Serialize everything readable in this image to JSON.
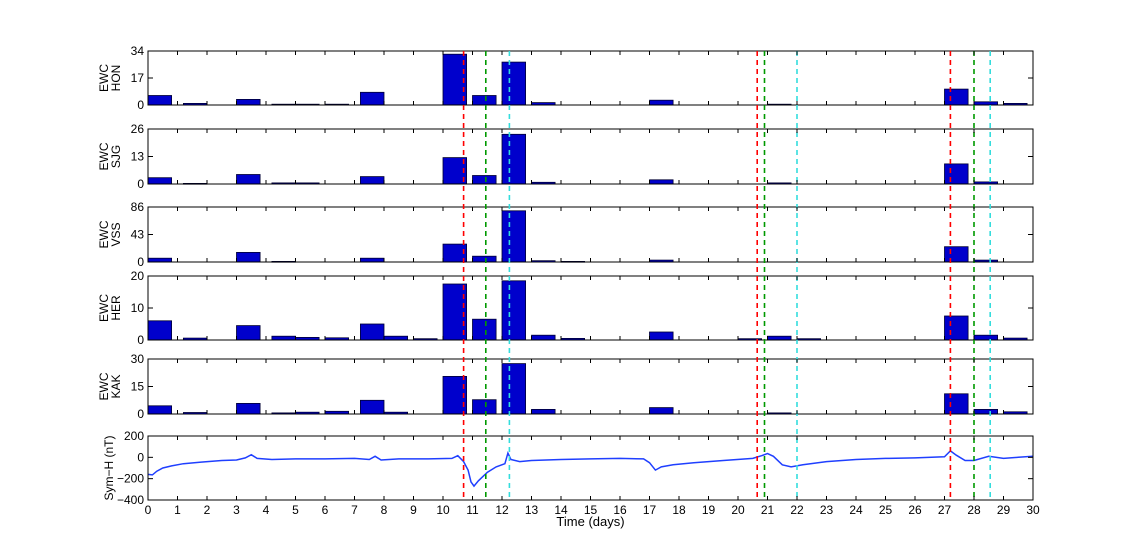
{
  "chart_data": [
    {
      "type": "bar",
      "ylabel": [
        "EWC",
        "HON"
      ],
      "yticks": [
        "0",
        "17",
        "34"
      ],
      "ylim": [
        0,
        34
      ],
      "bin_width_days": 0.8,
      "bars": [
        {
          "x": 0.4,
          "value": 6
        },
        {
          "x": 1.6,
          "value": 1
        },
        {
          "x": 3.4,
          "value": 3.5
        },
        {
          "x": 4.6,
          "value": 0.5
        },
        {
          "x": 5.4,
          "value": 0.5
        },
        {
          "x": 6.4,
          "value": 0.5
        },
        {
          "x": 7.6,
          "value": 8
        },
        {
          "x": 10.4,
          "value": 32
        },
        {
          "x": 11.4,
          "value": 6
        },
        {
          "x": 12.4,
          "value": 27
        },
        {
          "x": 13.4,
          "value": 1.5
        },
        {
          "x": 17.4,
          "value": 3
        },
        {
          "x": 21.4,
          "value": 0.5
        },
        {
          "x": 27.4,
          "value": 10
        },
        {
          "x": 28.4,
          "value": 2
        },
        {
          "x": 29.4,
          "value": 1
        }
      ]
    },
    {
      "type": "bar",
      "ylabel": [
        "EWC",
        "SJG"
      ],
      "yticks": [
        "0",
        "13",
        "26"
      ],
      "ylim": [
        0,
        26
      ],
      "bin_width_days": 0.8,
      "bars": [
        {
          "x": 0.4,
          "value": 3
        },
        {
          "x": 1.6,
          "value": 0.3
        },
        {
          "x": 3.4,
          "value": 4.5
        },
        {
          "x": 4.6,
          "value": 0.5
        },
        {
          "x": 5.4,
          "value": 0.5
        },
        {
          "x": 7.6,
          "value": 3.5
        },
        {
          "x": 10.4,
          "value": 12.5
        },
        {
          "x": 11.4,
          "value": 4
        },
        {
          "x": 12.4,
          "value": 23.5
        },
        {
          "x": 13.4,
          "value": 0.8
        },
        {
          "x": 17.4,
          "value": 2
        },
        {
          "x": 21.4,
          "value": 0.5
        },
        {
          "x": 27.4,
          "value": 9.5
        },
        {
          "x": 28.4,
          "value": 1
        }
      ]
    },
    {
      "type": "bar",
      "ylabel": [
        "EWC",
        "VSS"
      ],
      "yticks": [
        "0",
        "43",
        "86"
      ],
      "ylim": [
        0,
        86
      ],
      "bin_width_days": 0.8,
      "bars": [
        {
          "x": 0.4,
          "value": 6
        },
        {
          "x": 3.4,
          "value": 15
        },
        {
          "x": 4.6,
          "value": 1
        },
        {
          "x": 7.6,
          "value": 6
        },
        {
          "x": 10.4,
          "value": 28
        },
        {
          "x": 11.4,
          "value": 9
        },
        {
          "x": 12.4,
          "value": 80
        },
        {
          "x": 13.4,
          "value": 2
        },
        {
          "x": 14.4,
          "value": 1
        },
        {
          "x": 17.4,
          "value": 3
        },
        {
          "x": 27.4,
          "value": 24
        },
        {
          "x": 28.4,
          "value": 3
        }
      ]
    },
    {
      "type": "bar",
      "ylabel": [
        "EWC",
        "HER"
      ],
      "yticks": [
        "0",
        "10",
        "20"
      ],
      "ylim": [
        0,
        20
      ],
      "bin_width_days": 0.8,
      "bars": [
        {
          "x": 0.4,
          "value": 6
        },
        {
          "x": 1.6,
          "value": 0.6
        },
        {
          "x": 3.4,
          "value": 4.5
        },
        {
          "x": 4.6,
          "value": 1.2
        },
        {
          "x": 5.4,
          "value": 0.8
        },
        {
          "x": 6.4,
          "value": 0.7
        },
        {
          "x": 7.6,
          "value": 5
        },
        {
          "x": 8.4,
          "value": 1.2
        },
        {
          "x": 9.4,
          "value": 0.4
        },
        {
          "x": 10.4,
          "value": 17.5
        },
        {
          "x": 11.4,
          "value": 6.5
        },
        {
          "x": 12.4,
          "value": 18.5
        },
        {
          "x": 13.4,
          "value": 1.5
        },
        {
          "x": 14.4,
          "value": 0.5
        },
        {
          "x": 17.4,
          "value": 2.5
        },
        {
          "x": 20.4,
          "value": 0.4
        },
        {
          "x": 21.4,
          "value": 1.2
        },
        {
          "x": 22.4,
          "value": 0.4
        },
        {
          "x": 27.4,
          "value": 7.5
        },
        {
          "x": 28.4,
          "value": 1.5
        },
        {
          "x": 29.4,
          "value": 0.6
        }
      ]
    },
    {
      "type": "bar",
      "ylabel": [
        "EWC",
        "KAK"
      ],
      "yticks": [
        "0",
        "15",
        "30"
      ],
      "ylim": [
        0,
        30
      ],
      "bin_width_days": 0.8,
      "bars": [
        {
          "x": 0.4,
          "value": 4.5
        },
        {
          "x": 1.6,
          "value": 0.8
        },
        {
          "x": 3.4,
          "value": 5.8
        },
        {
          "x": 4.6,
          "value": 0.6
        },
        {
          "x": 5.4,
          "value": 1
        },
        {
          "x": 6.4,
          "value": 1.5
        },
        {
          "x": 7.6,
          "value": 7.5
        },
        {
          "x": 8.4,
          "value": 1
        },
        {
          "x": 10.4,
          "value": 20.5
        },
        {
          "x": 11.4,
          "value": 7.8
        },
        {
          "x": 12.4,
          "value": 27.5
        },
        {
          "x": 13.4,
          "value": 2.5
        },
        {
          "x": 17.4,
          "value": 3.5
        },
        {
          "x": 21.4,
          "value": 0.6
        },
        {
          "x": 27.4,
          "value": 11
        },
        {
          "x": 28.4,
          "value": 2.5
        },
        {
          "x": 29.4,
          "value": 1.2
        }
      ]
    },
    {
      "type": "line",
      "ylabel": [
        "Sym−H (nT)"
      ],
      "yticks": [
        "−400",
        "−200",
        "0",
        "200"
      ],
      "ylim": [
        -400,
        200
      ],
      "xlabel": "Time (days)",
      "xticks": [
        "0",
        "1",
        "2",
        "3",
        "4",
        "5",
        "6",
        "7",
        "8",
        "9",
        "10",
        "11",
        "12",
        "13",
        "14",
        "15",
        "16",
        "17",
        "18",
        "19",
        "20",
        "21",
        "22",
        "23",
        "24",
        "25",
        "26",
        "27",
        "28",
        "29",
        "30"
      ],
      "xlim": [
        0,
        30
      ],
      "series": [
        {
          "color": "#1f3fff",
          "points": [
            [
              0,
              -160
            ],
            [
              0.15,
              -165
            ],
            [
              0.3,
              -130
            ],
            [
              0.5,
              -100
            ],
            [
              0.8,
              -80
            ],
            [
              1.2,
              -60
            ],
            [
              1.8,
              -45
            ],
            [
              2.5,
              -30
            ],
            [
              3.0,
              -25
            ],
            [
              3.3,
              -5
            ],
            [
              3.5,
              25
            ],
            [
              3.7,
              -10
            ],
            [
              4.2,
              -20
            ],
            [
              5.0,
              -15
            ],
            [
              6.0,
              -15
            ],
            [
              7.0,
              -10
            ],
            [
              7.5,
              -20
            ],
            [
              7.7,
              10
            ],
            [
              7.9,
              -25
            ],
            [
              8.5,
              -15
            ],
            [
              9.5,
              -15
            ],
            [
              10.3,
              -10
            ],
            [
              10.5,
              15
            ],
            [
              10.7,
              -40
            ],
            [
              10.85,
              -120
            ],
            [
              10.95,
              -230
            ],
            [
              11.05,
              -270
            ],
            [
              11.2,
              -220
            ],
            [
              11.5,
              -140
            ],
            [
              11.8,
              -90
            ],
            [
              12.1,
              -60
            ],
            [
              12.2,
              40
            ],
            [
              12.3,
              -20
            ],
            [
              12.6,
              -40
            ],
            [
              13.0,
              -30
            ],
            [
              14.0,
              -20
            ],
            [
              15.0,
              -15
            ],
            [
              16.0,
              -10
            ],
            [
              16.8,
              -15
            ],
            [
              17.0,
              -50
            ],
            [
              17.2,
              -120
            ],
            [
              17.4,
              -90
            ],
            [
              17.8,
              -70
            ],
            [
              18.5,
              -50
            ],
            [
              19.5,
              -30
            ],
            [
              20.5,
              -10
            ],
            [
              20.8,
              15
            ],
            [
              21.0,
              35
            ],
            [
              21.2,
              10
            ],
            [
              21.5,
              -70
            ],
            [
              21.8,
              -90
            ],
            [
              22.2,
              -70
            ],
            [
              23.0,
              -40
            ],
            [
              24.0,
              -20
            ],
            [
              25.0,
              -10
            ],
            [
              26.0,
              -5
            ],
            [
              27.0,
              5
            ],
            [
              27.2,
              60
            ],
            [
              27.4,
              20
            ],
            [
              27.7,
              -30
            ],
            [
              28.0,
              -30
            ],
            [
              28.5,
              10
            ],
            [
              29.0,
              -10
            ],
            [
              29.5,
              0
            ],
            [
              30.0,
              10
            ]
          ]
        }
      ]
    }
  ],
  "vertical_markers": [
    {
      "x": 10.7,
      "color": "#ff0000"
    },
    {
      "x": 11.45,
      "color": "#009900"
    },
    {
      "x": 12.25,
      "color": "#33dddd"
    },
    {
      "x": 20.65,
      "color": "#ff0000"
    },
    {
      "x": 20.9,
      "color": "#009900"
    },
    {
      "x": 22.0,
      "color": "#33dddd"
    },
    {
      "x": 27.2,
      "color": "#ff0000"
    },
    {
      "x": 28.0,
      "color": "#009900"
    },
    {
      "x": 28.55,
      "color": "#33dddd"
    }
  ],
  "colors": {
    "bar_fill": "#0000cc",
    "bar_stroke": "#000033",
    "line": "#1f3fff"
  }
}
